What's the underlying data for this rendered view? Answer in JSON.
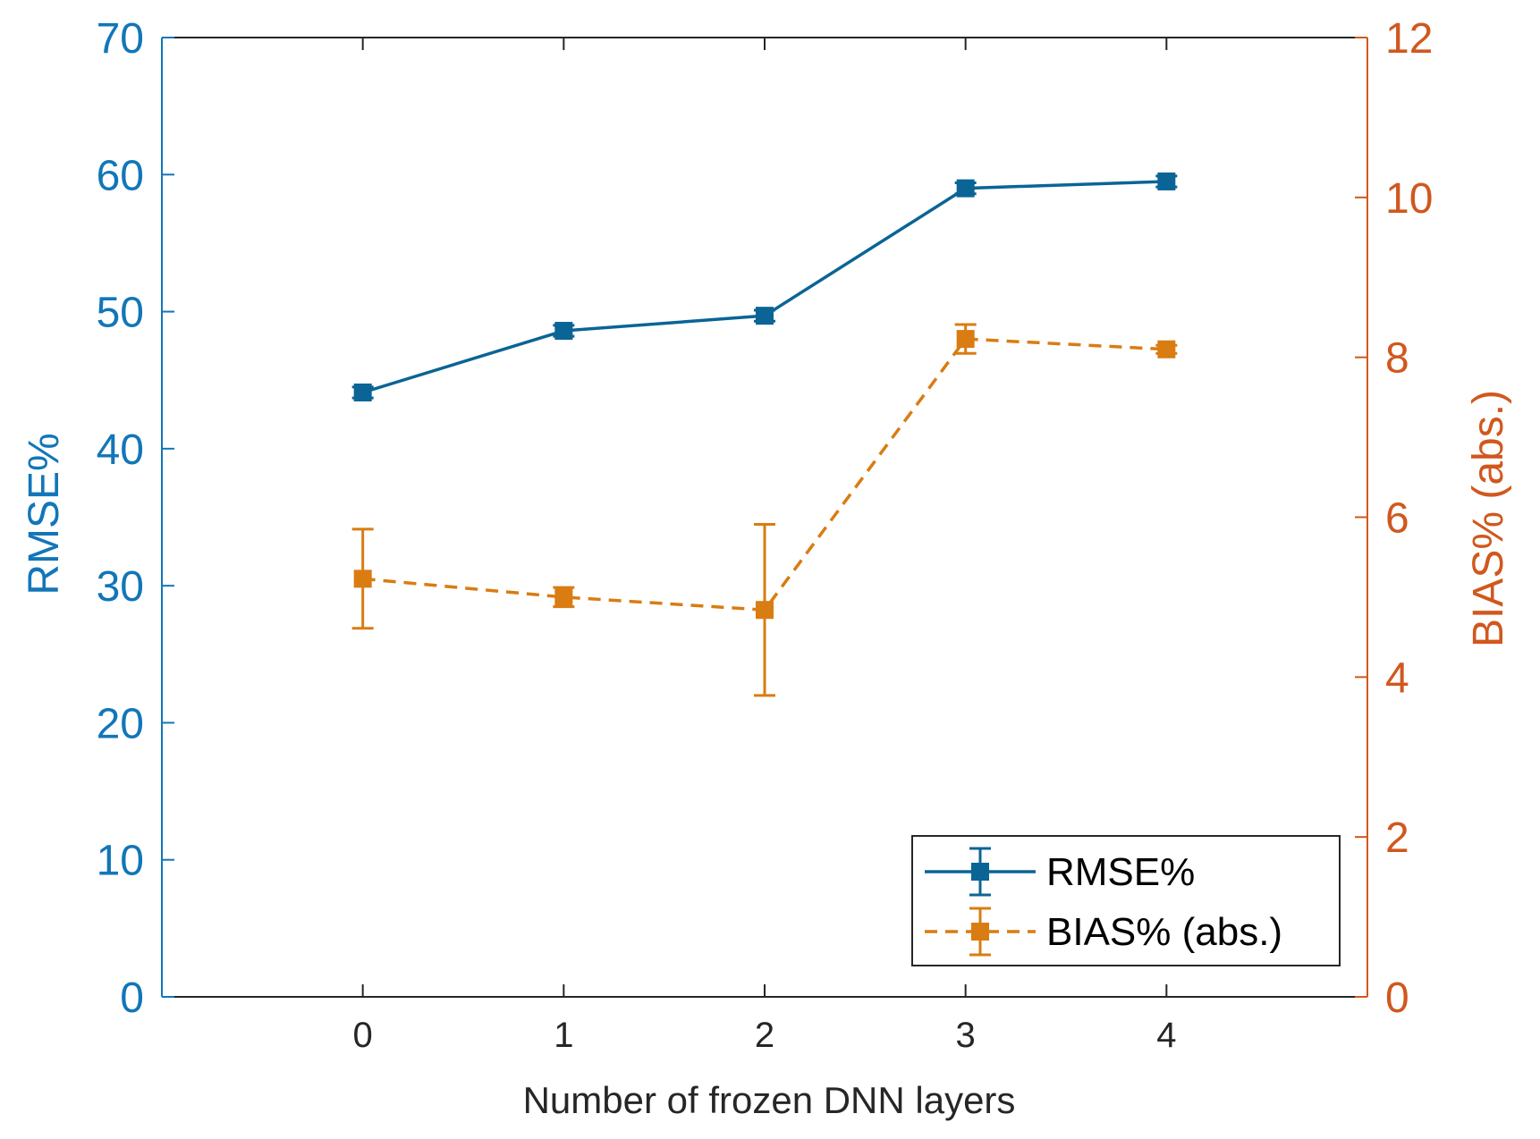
{
  "chart_data": {
    "type": "line",
    "title": "",
    "xlabel": "Number of frozen DNN layers",
    "ylabel_left": "RMSE%",
    "ylabel_right": "BIAS% (abs.)",
    "x": [
      0,
      1,
      2,
      3,
      4
    ],
    "x_ticks": [
      "0",
      "1",
      "2",
      "3",
      "4"
    ],
    "xlim": [
      -1,
      5
    ],
    "ylim_left": [
      0,
      70
    ],
    "ylim_right": [
      0,
      12
    ],
    "y_ticks_left": [
      "0",
      "10",
      "20",
      "30",
      "40",
      "50",
      "60",
      "70"
    ],
    "y_ticks_right": [
      "0",
      "2",
      "4",
      "6",
      "8",
      "10",
      "12"
    ],
    "grid": false,
    "legend_position": "bottom-right",
    "series": [
      {
        "name": "RMSE%",
        "axis": "left",
        "style": "solid",
        "marker": "square",
        "color": "#0a6496",
        "values": [
          44.1,
          48.6,
          49.7,
          59.0,
          59.5
        ],
        "err_low": [
          0.4,
          0.4,
          0.4,
          0.4,
          0.4
        ],
        "err_high": [
          0.4,
          0.4,
          0.4,
          0.4,
          0.4
        ]
      },
      {
        "name": "BIAS% (abs.)",
        "axis": "right",
        "style": "dashed",
        "marker": "square",
        "color": "#d97c12",
        "values": [
          5.23,
          5.0,
          4.84,
          8.23,
          8.1
        ],
        "err_low": [
          0.62,
          0.12,
          1.07,
          0.18,
          0.05
        ],
        "err_high": [
          0.62,
          0.12,
          1.07,
          0.18,
          0.05
        ]
      }
    ],
    "colors": {
      "left_axis": "#1276b8",
      "right_axis": "#d0581e",
      "bottom_axis": "#262626"
    }
  }
}
